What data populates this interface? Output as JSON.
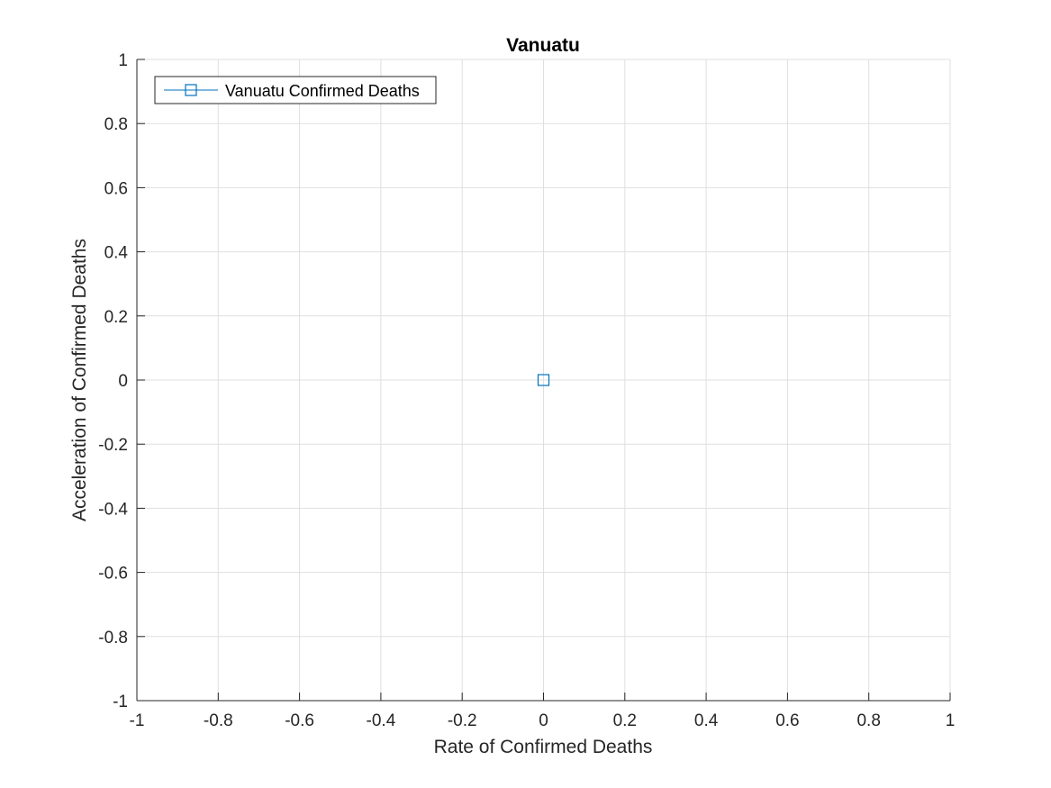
{
  "chart_data": {
    "type": "line",
    "title": "Vanuatu",
    "xlabel": "Rate of Confirmed Deaths",
    "ylabel": "Acceleration of Confirmed Deaths",
    "xlim": [
      -1,
      1
    ],
    "ylim": [
      -1,
      1
    ],
    "xticks": [
      -1,
      -0.8,
      -0.6,
      -0.4,
      -0.2,
      0,
      0.2,
      0.4,
      0.6,
      0.8,
      1
    ],
    "yticks": [
      -1,
      -0.8,
      -0.6,
      -0.4,
      -0.2,
      0,
      0.2,
      0.4,
      0.6,
      0.8,
      1
    ],
    "xtick_labels": [
      "-1",
      "-0.8",
      "-0.6",
      "-0.4",
      "-0.2",
      "0",
      "0.2",
      "0.4",
      "0.6",
      "0.8",
      "1"
    ],
    "ytick_labels": [
      "-1",
      "-0.8",
      "-0.6",
      "-0.4",
      "-0.2",
      "0",
      "0.2",
      "0.4",
      "0.6",
      "0.8",
      "1"
    ],
    "grid": true,
    "legend_position": "top-left",
    "series": [
      {
        "name": "Vanuatu Confirmed Deaths",
        "marker": "square",
        "color": "#0072BD",
        "x": [
          0
        ],
        "y": [
          0
        ]
      }
    ]
  }
}
